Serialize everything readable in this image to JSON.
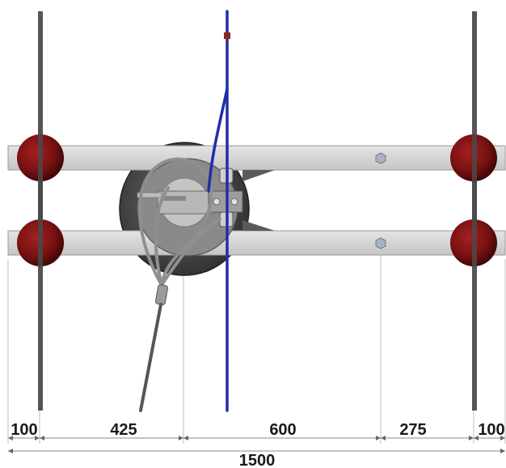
{
  "drawing": {
    "dimensions": {
      "segments": [
        "100",
        "425",
        "600",
        "275",
        "100"
      ],
      "total": "1500"
    },
    "colors": {
      "rail_bar": "#d2d2d2",
      "rod": "#555555",
      "float_ball": "#7a1212",
      "cable": "#1f2fa8",
      "wire_loop": "#9a9a9a",
      "drum": "#4a4a4a"
    }
  }
}
